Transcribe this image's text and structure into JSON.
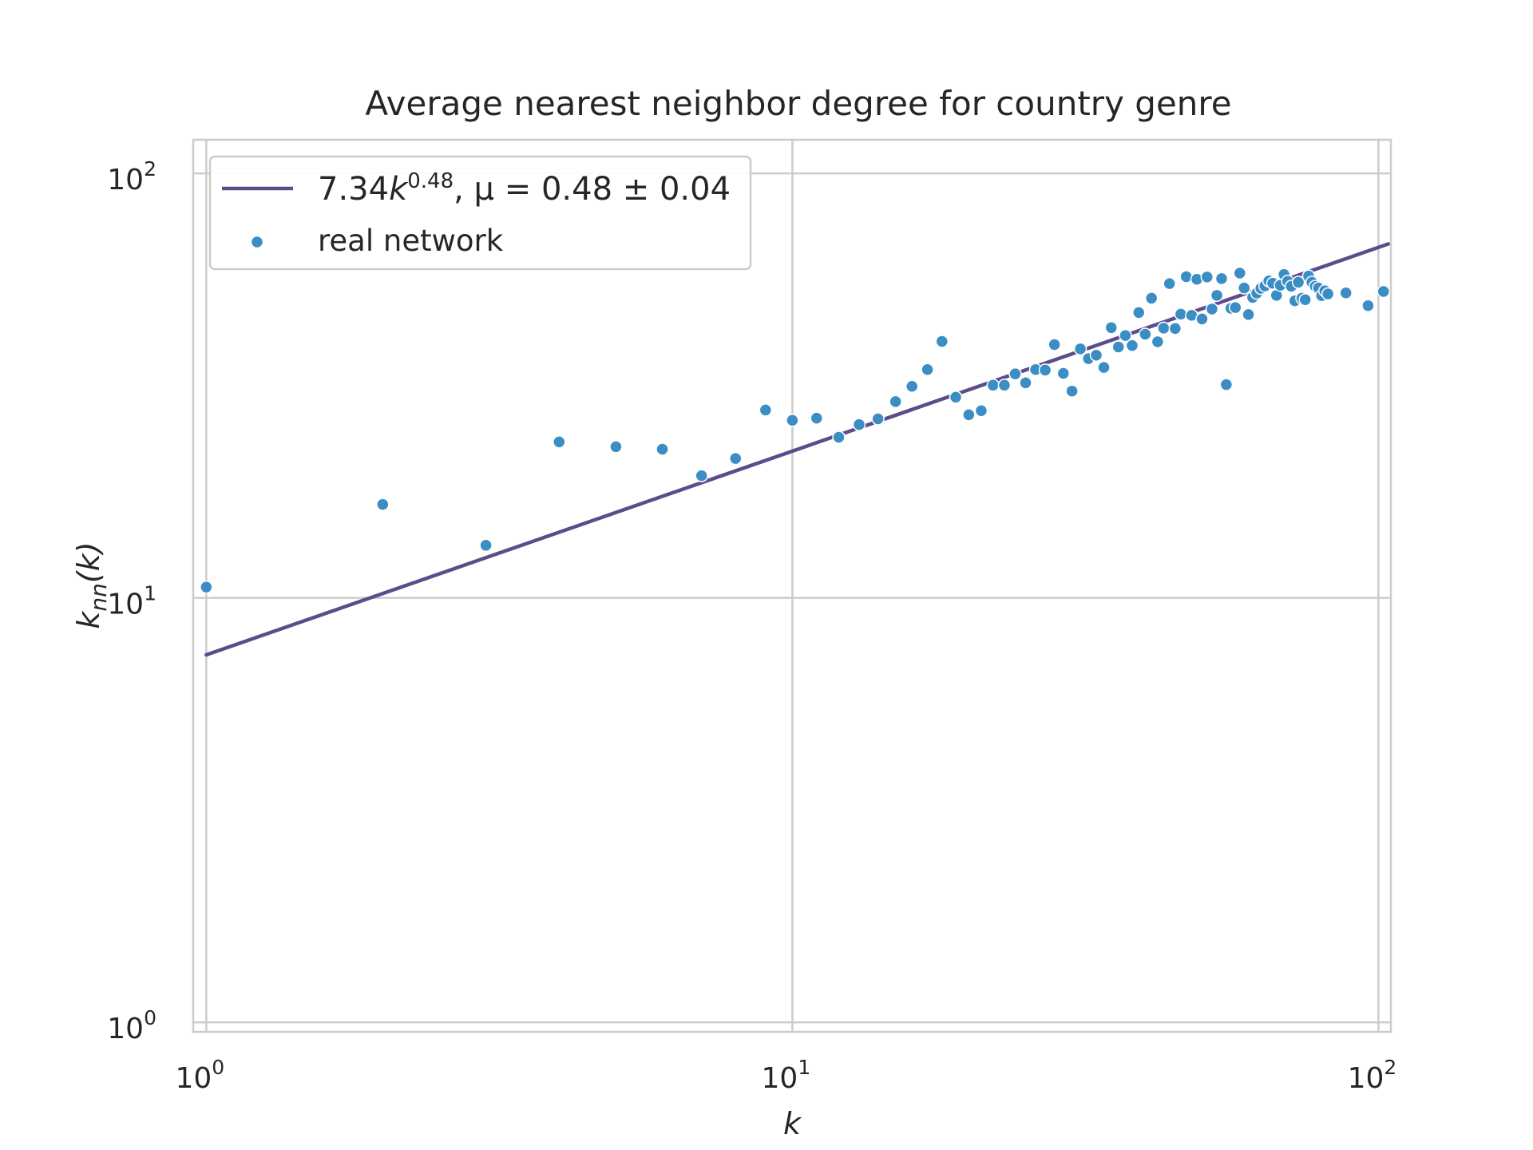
{
  "chart_data": {
    "type": "scatter",
    "title": "Average nearest neighbor degree for country genre",
    "xlabel": "k",
    "ylabel": {
      "base": "k",
      "sub": "nn",
      "arg": "(k)"
    },
    "x_scale": "log",
    "y_scale": "log",
    "xlim": [
      0.95,
      105
    ],
    "ylim": [
      0.95,
      120
    ],
    "grid": true,
    "legend_position": "upper-left",
    "colors": {
      "fit": "#5e4b8b",
      "points": "#3a8ec4",
      "grid": "#cccccc"
    },
    "x_ticks": [
      {
        "value": 1,
        "base": "10",
        "exp": "0"
      },
      {
        "value": 10,
        "base": "10",
        "exp": "1"
      },
      {
        "value": 100,
        "base": "10",
        "exp": "2"
      }
    ],
    "y_ticks": [
      {
        "value": 1,
        "base": "10",
        "exp": "0"
      },
      {
        "value": 10,
        "base": "10",
        "exp": "1"
      },
      {
        "value": 100,
        "base": "10",
        "exp": "2"
      }
    ],
    "fit": {
      "label_coef": "7.34",
      "label_var": "k",
      "label_exp": "0.48",
      "label_rest": ", μ = 0.48 ± 0.04",
      "coef": 7.34,
      "exponent": 0.48,
      "x_range": [
        1,
        104
      ]
    },
    "series": [
      {
        "name": "real network",
        "points": [
          [
            1,
            10.6
          ],
          [
            2,
            16.6
          ],
          [
            3,
            13.3
          ],
          [
            4,
            23.3
          ],
          [
            5,
            22.7
          ],
          [
            6,
            22.4
          ],
          [
            7,
            19.4
          ],
          [
            8,
            21.3
          ],
          [
            9,
            27.7
          ],
          [
            10,
            26.2
          ],
          [
            11,
            26.5
          ],
          [
            12,
            23.9
          ],
          [
            13,
            25.6
          ],
          [
            14,
            26.4
          ],
          [
            15,
            29.0
          ],
          [
            16,
            31.5
          ],
          [
            17,
            34.5
          ],
          [
            18,
            40.2
          ],
          [
            19,
            29.7
          ],
          [
            20,
            27.0
          ],
          [
            21,
            27.6
          ],
          [
            22,
            31.7
          ],
          [
            23,
            31.7
          ],
          [
            24,
            33.7
          ],
          [
            25,
            32.1
          ],
          [
            26,
            34.5
          ],
          [
            27,
            34.4
          ],
          [
            28,
            39.5
          ],
          [
            29,
            33.8
          ],
          [
            30,
            30.7
          ],
          [
            31,
            38.6
          ],
          [
            32,
            36.6
          ],
          [
            33,
            37.3
          ],
          [
            34,
            34.9
          ],
          [
            35,
            43.3
          ],
          [
            36,
            39.0
          ],
          [
            37,
            41.5
          ],
          [
            38,
            39.3
          ],
          [
            39,
            47.0
          ],
          [
            40,
            41.8
          ],
          [
            41,
            50.8
          ],
          [
            42,
            40.1
          ],
          [
            43,
            43.2
          ],
          [
            44,
            55.0
          ],
          [
            45,
            43.1
          ],
          [
            46,
            46.6
          ],
          [
            47,
            57.1
          ],
          [
            48,
            46.3
          ],
          [
            49,
            56.3
          ],
          [
            50,
            45.4
          ],
          [
            51,
            57.0
          ],
          [
            52,
            47.9
          ],
          [
            53,
            51.6
          ],
          [
            54,
            56.5
          ],
          [
            55,
            31.8
          ],
          [
            56,
            48.1
          ],
          [
            57,
            48.3
          ],
          [
            58,
            58.2
          ],
          [
            59,
            53.7
          ],
          [
            60,
            46.5
          ],
          [
            61,
            51.0
          ],
          [
            62,
            52.2
          ],
          [
            63,
            53.6
          ],
          [
            64,
            54.3
          ],
          [
            65,
            55.8
          ],
          [
            66,
            55.1
          ],
          [
            67,
            51.6
          ],
          [
            68,
            54.5
          ],
          [
            69,
            57.8
          ],
          [
            70,
            55.7
          ],
          [
            71,
            54.2
          ],
          [
            72,
            50.1
          ],
          [
            73,
            55.4
          ],
          [
            74,
            50.8
          ],
          [
            75,
            50.4
          ],
          [
            76,
            57.3
          ],
          [
            77,
            55.4
          ],
          [
            78,
            54.2
          ],
          [
            79,
            53.7
          ],
          [
            80,
            51.5
          ],
          [
            81,
            52.9
          ],
          [
            82,
            52.0
          ],
          [
            88,
            52.3
          ],
          [
            96,
            48.8
          ],
          [
            102,
            52.7
          ]
        ]
      }
    ]
  }
}
